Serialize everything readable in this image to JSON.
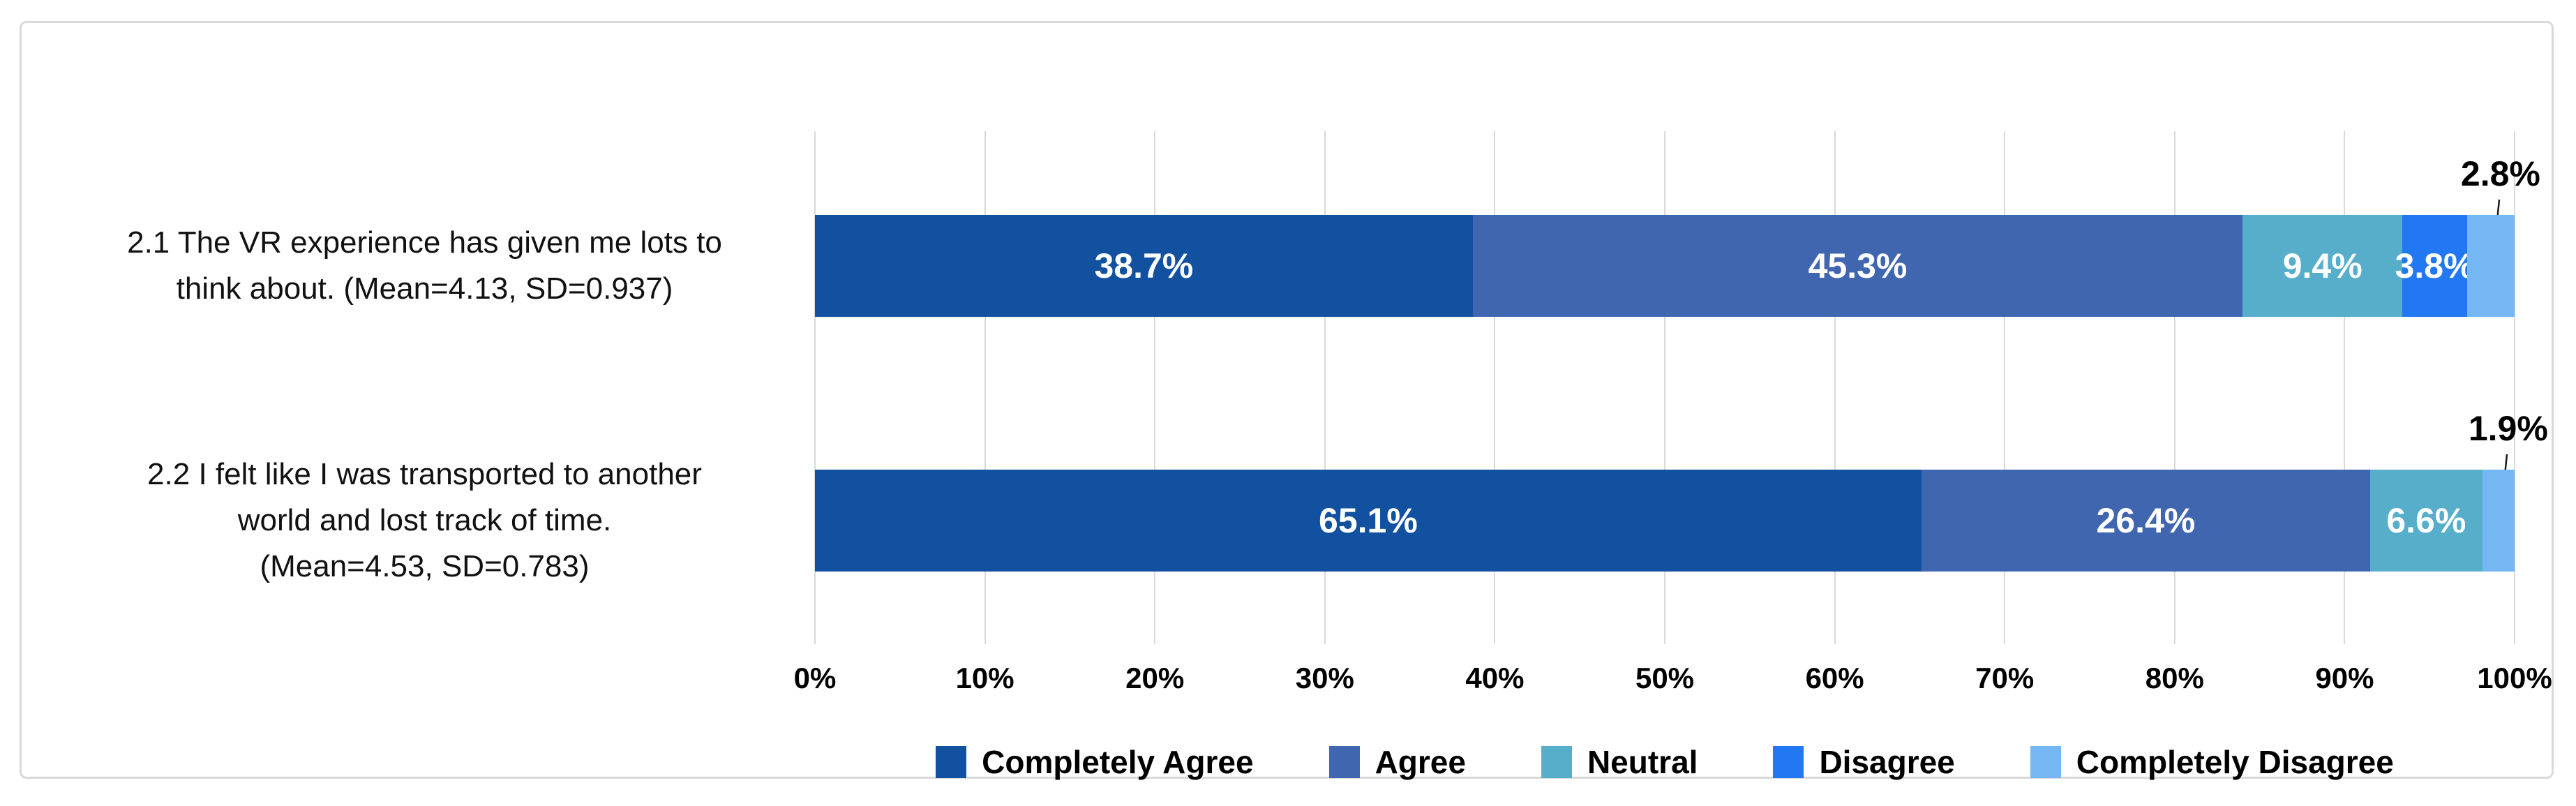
{
  "chart_data": {
    "type": "bar",
    "subtype": "horizontal-stacked-100pct",
    "title": "",
    "xlabel": "",
    "ylabel": "",
    "xlim": [
      0,
      100
    ],
    "grid": true,
    "legend_position": "bottom",
    "x_ticks": [
      "0%",
      "10%",
      "20%",
      "30%",
      "40%",
      "50%",
      "60%",
      "70%",
      "80%",
      "90%",
      "100%"
    ],
    "legend": [
      {
        "label": "Completely Agree",
        "color": "#11519F"
      },
      {
        "label": "Agree",
        "color": "#4166B0"
      },
      {
        "label": "Neutral",
        "color": "#57AECB"
      },
      {
        "label": "Disagree",
        "color": "#2277F2"
      },
      {
        "label": "Completely Disagree",
        "color": "#74B7F3"
      }
    ],
    "rows": [
      {
        "label_lines": [
          "2.1 The VR experience has given me lots to",
          "think about. (Mean=4.13, SD=0.937)"
        ],
        "mean": 4.13,
        "sd": 0.937,
        "segments": [
          {
            "series": "Completely Agree",
            "value": 38.7,
            "label": "38.7%",
            "label_pos": "inside"
          },
          {
            "series": "Agree",
            "value": 45.3,
            "label": "45.3%",
            "label_pos": "inside"
          },
          {
            "series": "Neutral",
            "value": 9.4,
            "label": "9.4%",
            "label_pos": "inside"
          },
          {
            "series": "Disagree",
            "value": 3.8,
            "label": "3.8%",
            "label_pos": "inside"
          },
          {
            "series": "Completely Disagree",
            "value": 2.8,
            "label": "2.8%",
            "label_pos": "outside"
          }
        ]
      },
      {
        "label_lines": [
          "2.2 I felt like I was transported to another",
          "world and lost track of time.",
          "(Mean=4.53, SD=0.783)"
        ],
        "mean": 4.53,
        "sd": 0.783,
        "segments": [
          {
            "series": "Completely Agree",
            "value": 65.1,
            "label": "65.1%",
            "label_pos": "inside"
          },
          {
            "series": "Agree",
            "value": 26.4,
            "label": "26.4%",
            "label_pos": "inside"
          },
          {
            "series": "Neutral",
            "value": 6.6,
            "label": "6.6%",
            "label_pos": "inside"
          },
          {
            "series": "Completely Disagree",
            "value": 1.9,
            "label": "1.9%",
            "label_pos": "outside"
          }
        ]
      }
    ]
  },
  "style": {
    "grid_color": "#D9D9D9",
    "card_border_color": "#D9D9D9",
    "inside_label_color": "#FFFFFF",
    "text_color": "#000000",
    "leader_line_color": "#1A1A1A"
  }
}
